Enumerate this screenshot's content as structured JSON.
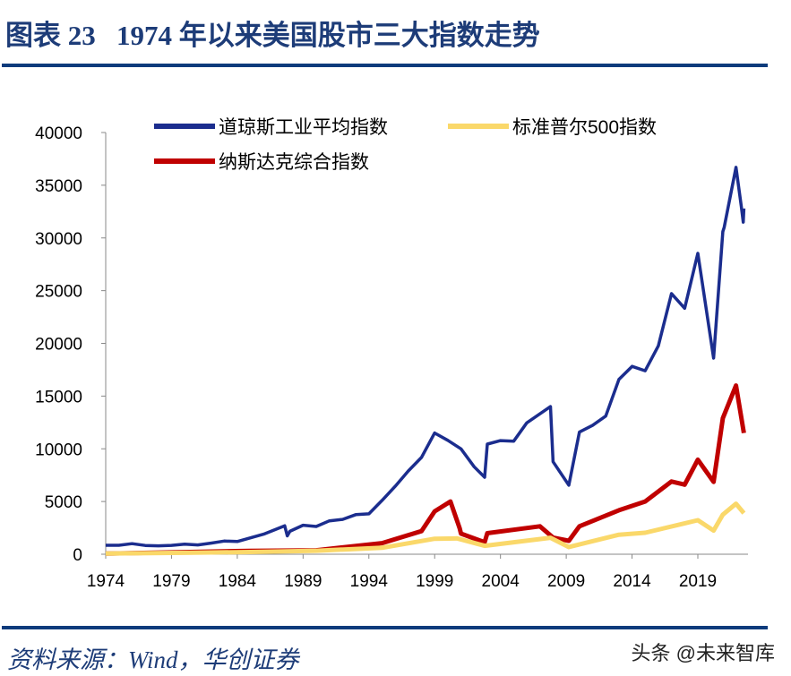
{
  "title": "图表 23   1974 年以来美国股市三大指数走势",
  "source": "资料来源：Wind，华创证券",
  "watermark": "头条 @未来智库",
  "chart_data": {
    "type": "line",
    "title": "",
    "xlabel": "",
    "ylabel": "",
    "xlim": [
      1974,
      2022.5
    ],
    "ylim": [
      0,
      40000
    ],
    "x_ticks": [
      "1974",
      "1979",
      "1984",
      "1989",
      "1994",
      "1999",
      "2004",
      "2009",
      "2014",
      "2019"
    ],
    "y_ticks": [
      "0",
      "5000",
      "10000",
      "15000",
      "20000",
      "25000",
      "30000",
      "35000",
      "40000"
    ],
    "grid": false,
    "legend_position": "top",
    "series": [
      {
        "name": "道琼斯工业平均指数",
        "color": "#1b2d8e",
        "x": [
          1974,
          1975,
          1976,
          1977,
          1978,
          1979,
          1980,
          1981,
          1982,
          1983,
          1984,
          1985,
          1986,
          1987.6,
          1987.8,
          1988,
          1989,
          1990,
          1991,
          1992,
          1993,
          1994,
          1995,
          1996,
          1997,
          1998,
          1999,
          2000,
          2001,
          2002,
          2002.8,
          2003,
          2004,
          2005,
          2006,
          2007.8,
          2008,
          2009.2,
          2010,
          2011,
          2012,
          2013,
          2014,
          2015,
          2016,
          2017,
          2018,
          2019,
          2020.2,
          2020.9,
          2021,
          2021.9,
          2022.3,
          2022.45,
          2022.5
        ],
        "y": [
          850,
          850,
          1000,
          830,
          800,
          840,
          960,
          880,
          1050,
          1250,
          1210,
          1550,
          1900,
          2700,
          1740,
          2170,
          2750,
          2630,
          3170,
          3300,
          3750,
          3830,
          5100,
          6450,
          7900,
          9180,
          11500,
          10800,
          10000,
          8300,
          7300,
          10450,
          10780,
          10720,
          12460,
          14000,
          8770,
          6550,
          11580,
          12220,
          13100,
          16580,
          17820,
          17400,
          19760,
          24720,
          23330,
          28540,
          18600,
          30600,
          31000,
          36700,
          33000,
          31500,
          32800
        ]
      },
      {
        "name": "标准普尔500指数",
        "color": "#fad86a",
        "x": [
          1974,
          1980,
          1985,
          1990,
          1995,
          1999,
          2000.7,
          2002.8,
          2007.8,
          2009.2,
          2013,
          2015,
          2019,
          2020.2,
          2020.9,
          2021.9,
          2022.5
        ],
        "y": [
          70,
          135,
          210,
          330,
          615,
          1470,
          1500,
          800,
          1560,
          680,
          1850,
          2040,
          3230,
          2240,
          3750,
          4790,
          3900
        ]
      },
      {
        "name": "纳斯达克综合指数",
        "color": "#c00000",
        "x": [
          1974,
          1980,
          1985,
          1990,
          1995,
          1998,
          1999,
          2000.2,
          2000.9,
          2001,
          2002.8,
          2003,
          2007,
          2008,
          2009.2,
          2010,
          2013,
          2015,
          2017,
          2018,
          2019,
          2020.2,
          2020.9,
          2021.9,
          2022.5
        ],
        "y": [
          60,
          200,
          325,
          375,
          1050,
          2190,
          4070,
          5000,
          2470,
          1950,
          1140,
          2000,
          2650,
          1577,
          1270,
          2650,
          4170,
          5000,
          6900,
          6600,
          8970,
          6860,
          12900,
          16000,
          11500
        ]
      }
    ]
  }
}
